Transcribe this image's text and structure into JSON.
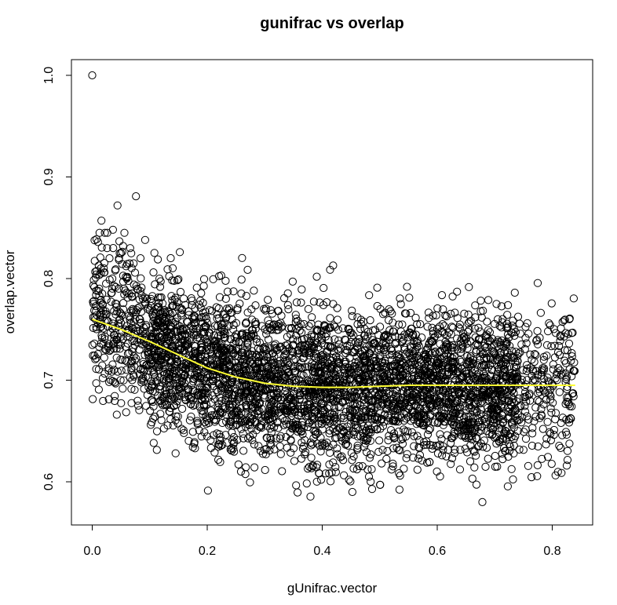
{
  "chart_data": {
    "type": "scatter",
    "title": "gunifrac vs overlap",
    "xlabel": "gUnifrac.vector",
    "ylabel": "overlap.vector",
    "xlim": [
      -0.04,
      0.87
    ],
    "ylim": [
      0.55,
      1.02
    ],
    "x_ticks": [
      "0.0",
      "0.2",
      "0.4",
      "0.6",
      "0.8"
    ],
    "y_ticks": [
      "0.6",
      "0.7",
      "0.8",
      "0.9",
      "1.0"
    ],
    "grid": false,
    "legend": "none",
    "point_style": "open-circle",
    "point_color": "#000000",
    "smooth_color": "#ffff33",
    "series": [
      {
        "values_note": "",
        "points": [
          [
            0.0,
            1.0
          ],
          [
            0.003,
            0.778
          ],
          [
            0.006,
            0.801
          ],
          [
            0.008,
            0.764
          ],
          [
            0.01,
            0.836
          ],
          [
            0.012,
            0.79
          ],
          [
            0.014,
            0.752
          ],
          [
            0.016,
            0.857
          ],
          [
            0.018,
            0.775
          ],
          [
            0.02,
            0.81
          ],
          [
            0.022,
            0.743
          ],
          [
            0.024,
            0.795
          ],
          [
            0.026,
            0.83
          ],
          [
            0.028,
            0.758
          ],
          [
            0.03,
            0.82
          ],
          [
            0.032,
            0.73
          ],
          [
            0.034,
            0.786
          ],
          [
            0.036,
            0.848
          ],
          [
            0.038,
            0.768
          ],
          [
            0.04,
            0.808
          ],
          [
            0.042,
            0.74
          ],
          [
            0.044,
            0.872
          ],
          [
            0.046,
            0.79
          ],
          [
            0.048,
            0.76
          ],
          [
            0.05,
            0.825
          ],
          [
            0.052,
            0.72
          ],
          [
            0.054,
            0.776
          ],
          [
            0.056,
            0.845
          ],
          [
            0.058,
            0.75
          ],
          [
            0.06,
            0.8
          ],
          [
            0.062,
            0.736
          ],
          [
            0.064,
            0.785
          ],
          [
            0.066,
            0.83
          ],
          [
            0.068,
            0.71
          ],
          [
            0.07,
            0.77
          ],
          [
            0.072,
            0.815
          ],
          [
            0.074,
            0.745
          ],
          [
            0.076,
            0.881
          ],
          [
            0.078,
            0.79
          ],
          [
            0.08,
            0.675
          ],
          [
            0.082,
            0.76
          ],
          [
            0.084,
            0.82
          ],
          [
            0.086,
            0.7
          ],
          [
            0.088,
            0.78
          ],
          [
            0.09,
            0.74
          ],
          [
            0.092,
            0.838
          ],
          [
            0.094,
            0.715
          ],
          [
            0.096,
            0.77
          ],
          [
            0.098,
            0.693
          ],
          [
            0.015,
            0.81
          ],
          [
            0.025,
            0.765
          ],
          [
            0.035,
            0.8
          ],
          [
            0.045,
            0.735
          ],
          [
            0.055,
            0.79
          ],
          [
            0.065,
            0.815
          ],
          [
            0.075,
            0.76
          ],
          [
            0.085,
            0.74
          ],
          [
            0.095,
            0.78
          ],
          [
            0.105,
            0.72
          ],
          [
            0.012,
            0.733
          ],
          [
            0.022,
            0.758
          ],
          [
            0.032,
            0.7
          ],
          [
            0.042,
            0.772
          ],
          [
            0.052,
            0.748
          ],
          [
            0.062,
            0.726
          ],
          [
            0.072,
            0.705
          ],
          [
            0.082,
            0.73
          ]
        ]
      }
    ],
    "smooth_curve": [
      [
        0.0,
        0.76
      ],
      [
        0.05,
        0.75
      ],
      [
        0.1,
        0.738
      ],
      [
        0.15,
        0.725
      ],
      [
        0.2,
        0.712
      ],
      [
        0.25,
        0.703
      ],
      [
        0.3,
        0.697
      ],
      [
        0.35,
        0.694
      ],
      [
        0.4,
        0.693
      ],
      [
        0.45,
        0.693
      ],
      [
        0.5,
        0.694
      ],
      [
        0.55,
        0.695
      ],
      [
        0.6,
        0.695
      ],
      [
        0.65,
        0.695
      ],
      [
        0.7,
        0.695
      ],
      [
        0.75,
        0.695
      ],
      [
        0.8,
        0.695
      ],
      [
        0.84,
        0.695
      ]
    ],
    "cloud": {
      "n": 4200,
      "x_range": [
        0.0,
        0.84
      ],
      "seed": 12345
    }
  }
}
